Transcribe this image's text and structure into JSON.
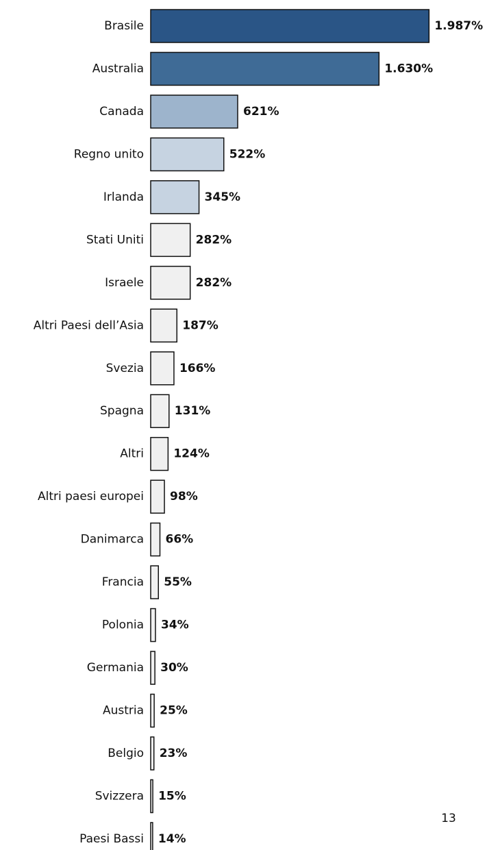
{
  "chart_data": {
    "type": "hbar",
    "categories": [
      "Brasile",
      "Australia",
      "Canada",
      "Regno unito",
      "Irlanda",
      "Stati Uniti",
      "Israele",
      "Altri Paesi dell’Asia",
      "Svezia",
      "Spagna",
      "Altri",
      "Altri paesi europei",
      "Danimarca",
      "Francia",
      "Polonia",
      "Germania",
      "Austria",
      "Belgio",
      "Svizzera",
      "Paesi Bassi"
    ],
    "values": [
      1987,
      1630,
      621,
      522,
      345,
      282,
      282,
      187,
      166,
      131,
      124,
      98,
      66,
      55,
      34,
      30,
      25,
      23,
      15,
      14
    ],
    "value_labels": [
      "1.987%",
      "1.630%",
      "621%",
      "522%",
      "345%",
      "282%",
      "282%",
      "187%",
      "166%",
      "131%",
      "124%",
      "98%",
      "66%",
      "55%",
      "34%",
      "30%",
      "25%",
      "23%",
      "15%",
      "14%"
    ],
    "colors": [
      "#2a5586",
      "#3f6b96",
      "#9db4cc",
      "#c6d3e1",
      "#c6d3e1",
      "#f0f0f0",
      "#f0f0f0",
      "#f0f0f0",
      "#f0f0f0",
      "#f0f0f0",
      "#f0f0f0",
      "#f0f0f0",
      "#f0f0f0",
      "#f0f0f0",
      "#f0f0f0",
      "#f0f0f0",
      "#f0f0f0",
      "#f0f0f0",
      "#f0f0f0",
      "#f0f0f0"
    ],
    "xlim": [
      0,
      2000
    ]
  },
  "page_number": "13"
}
